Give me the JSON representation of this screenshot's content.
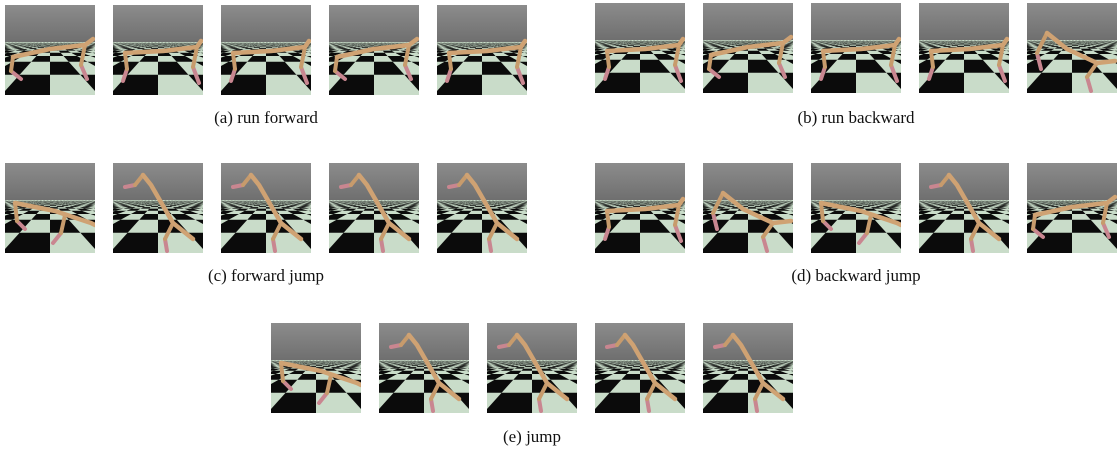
{
  "panels": [
    {
      "caption": "(a) run forward"
    },
    {
      "caption": "(b) run backward"
    },
    {
      "caption": "(c) forward jump"
    },
    {
      "caption": "(d) backward jump"
    },
    {
      "caption": "(e) jump"
    }
  ]
}
